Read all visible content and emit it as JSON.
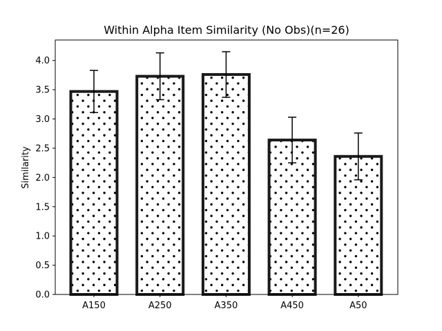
{
  "chart_data": {
    "type": "bar",
    "title": "Within Alpha Item Similarity (No Obs)(n=26)",
    "xlabel": "",
    "ylabel": "Similarity",
    "categories": [
      "A150",
      "A250",
      "A350",
      "A450",
      "A50"
    ],
    "values": [
      3.47,
      3.73,
      3.76,
      2.64,
      2.36
    ],
    "errors": [
      0.36,
      0.4,
      0.39,
      0.39,
      0.4
    ],
    "ylim": [
      0,
      4.35
    ],
    "yticks": [
      "0.0",
      "0.5",
      "1.0",
      "1.5",
      "2.0",
      "2.5",
      "3.0",
      "3.5",
      "4.0"
    ],
    "grid": false,
    "legend": "none",
    "bar_fill": "#ffffff",
    "bar_edge": "#1a1a1a",
    "hatch": "dots"
  }
}
